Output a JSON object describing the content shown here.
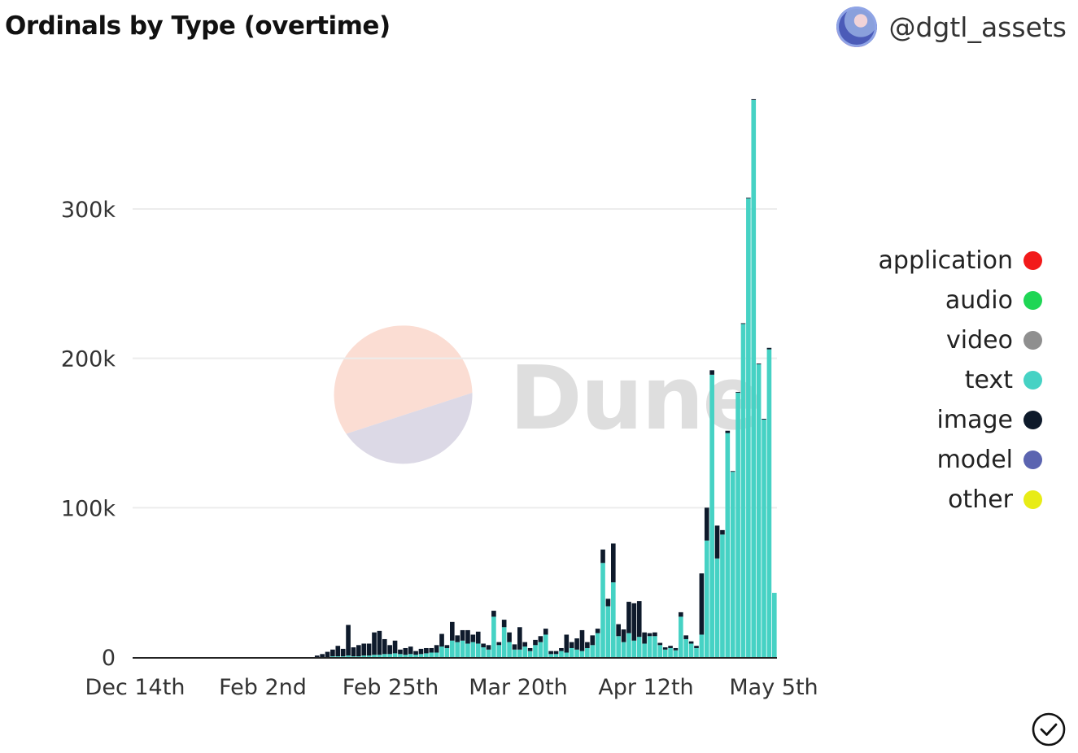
{
  "header": {
    "title": "Ordinals by Type (overtime)",
    "author": "@dgtl_assets"
  },
  "watermark": {
    "text": "Dune"
  },
  "legend": [
    {
      "label": "application",
      "color": "#f21a1a"
    },
    {
      "label": "audio",
      "color": "#1fd655"
    },
    {
      "label": "video",
      "color": "#8f8f8f"
    },
    {
      "label": "text",
      "color": "#46d2c4"
    },
    {
      "label": "image",
      "color": "#0e1a2b"
    },
    {
      "label": "model",
      "color": "#5b64b0"
    },
    {
      "label": "other",
      "color": "#e8ec16"
    }
  ],
  "icons": {
    "avatar": "user-avatar",
    "check": "check-circle-icon"
  },
  "chart_data": {
    "type": "bar",
    "stacked": true,
    "x_start": "Dec 14th",
    "x_end": "May 5th",
    "x_ticks": [
      "Dec 14th",
      "Feb 2nd",
      "Feb 25th",
      "Mar 20th",
      "Apr 12th",
      "May 5th"
    ],
    "y_ticks": [
      0,
      100000,
      200000,
      300000
    ],
    "y_tick_labels": [
      "0",
      "100k",
      "200k",
      "300k"
    ],
    "ylim": [
      0,
      380000
    ],
    "grid": true,
    "legend_position": "right",
    "series_order": [
      "application",
      "audio",
      "video",
      "text",
      "image",
      "model",
      "other"
    ],
    "bars": [
      {
        "text": 0,
        "image": 0
      },
      {
        "text": 0,
        "image": 0
      },
      {
        "text": 0,
        "image": 0
      },
      {
        "text": 0,
        "image": 0
      },
      {
        "text": 0,
        "image": 0
      },
      {
        "text": 0,
        "image": 0
      },
      {
        "text": 0,
        "image": 0
      },
      {
        "text": 0,
        "image": 0
      },
      {
        "text": 0,
        "image": 0
      },
      {
        "text": 0,
        "image": 0
      },
      {
        "text": 0,
        "image": 0
      },
      {
        "text": 0,
        "image": 0
      },
      {
        "text": 0,
        "image": 0
      },
      {
        "text": 0,
        "image": 0
      },
      {
        "text": 0,
        "image": 0
      },
      {
        "text": 0,
        "image": 0
      },
      {
        "text": 0,
        "image": 0
      },
      {
        "text": 0,
        "image": 0
      },
      {
        "text": 0,
        "image": 0
      },
      {
        "text": 0,
        "image": 0
      },
      {
        "text": 0,
        "image": 0
      },
      {
        "text": 0,
        "image": 0
      },
      {
        "text": 0,
        "image": 0
      },
      {
        "text": 0,
        "image": 0
      },
      {
        "text": 0,
        "image": 0
      },
      {
        "text": 0,
        "image": 0
      },
      {
        "text": 0,
        "image": 0
      },
      {
        "text": 0,
        "image": 0
      },
      {
        "text": 0,
        "image": 0
      },
      {
        "text": 0,
        "image": 0
      },
      {
        "text": 0,
        "image": 0
      },
      {
        "text": 0,
        "image": 0
      },
      {
        "text": 0,
        "image": 0
      },
      {
        "text": 0,
        "image": 0
      },
      {
        "text": 0,
        "image": 0
      },
      {
        "text": 0,
        "image": 1000
      },
      {
        "text": 0,
        "image": 2000
      },
      {
        "text": 0,
        "image": 3500
      },
      {
        "text": 500,
        "image": 4500
      },
      {
        "text": 500,
        "image": 7000
      },
      {
        "text": 500,
        "image": 5000
      },
      {
        "text": 1000,
        "image": 20500
      },
      {
        "text": 500,
        "image": 6000
      },
      {
        "text": 500,
        "image": 7500
      },
      {
        "text": 1000,
        "image": 8000
      },
      {
        "text": 1000,
        "image": 8000
      },
      {
        "text": 1500,
        "image": 15000
      },
      {
        "text": 1500,
        "image": 16000
      },
      {
        "text": 2000,
        "image": 10000
      },
      {
        "text": 2000,
        "image": 6000
      },
      {
        "text": 2500,
        "image": 8500
      },
      {
        "text": 2000,
        "image": 3000
      },
      {
        "text": 1500,
        "image": 4500
      },
      {
        "text": 2000,
        "image": 5000
      },
      {
        "text": 1500,
        "image": 2500
      },
      {
        "text": 2000,
        "image": 3500
      },
      {
        "text": 2500,
        "image": 3500
      },
      {
        "text": 3000,
        "image": 3000
      },
      {
        "text": 3000,
        "image": 5000
      },
      {
        "text": 7000,
        "image": 8500
      },
      {
        "text": 6000,
        "image": 2000
      },
      {
        "text": 11000,
        "image": 12500
      },
      {
        "text": 10000,
        "image": 4500
      },
      {
        "text": 11000,
        "image": 7000
      },
      {
        "text": 9000,
        "image": 9000
      },
      {
        "text": 10000,
        "image": 5000
      },
      {
        "text": 9000,
        "image": 8000
      },
      {
        "text": 6500,
        "image": 2500
      },
      {
        "text": 5000,
        "image": 3000
      },
      {
        "text": 27000,
        "image": 4000
      },
      {
        "text": 8000,
        "image": 2000
      },
      {
        "text": 20000,
        "image": 5000
      },
      {
        "text": 10000,
        "image": 6500
      },
      {
        "text": 5000,
        "image": 3500
      },
      {
        "text": 5000,
        "image": 15000
      },
      {
        "text": 7000,
        "image": 3000
      },
      {
        "text": 4000,
        "image": 2000
      },
      {
        "text": 8000,
        "image": 3500
      },
      {
        "text": 10000,
        "image": 4000
      },
      {
        "text": 15000,
        "image": 4000
      },
      {
        "text": 2000,
        "image": 2000
      },
      {
        "text": 2000,
        "image": 2000
      },
      {
        "text": 4000,
        "image": 2000
      },
      {
        "text": 3000,
        "image": 12000
      },
      {
        "text": 6000,
        "image": 4000
      },
      {
        "text": 5000,
        "image": 7500
      },
      {
        "text": 4000,
        "image": 14000
      },
      {
        "text": 6000,
        "image": 4000
      },
      {
        "text": 8000,
        "image": 6500
      },
      {
        "text": 16000,
        "image": 3000
      },
      {
        "text": 63000,
        "image": 9000
      },
      {
        "text": 34000,
        "image": 5000
      },
      {
        "text": 50000,
        "image": 26000
      },
      {
        "text": 14000,
        "image": 8000
      },
      {
        "text": 10000,
        "image": 8500
      },
      {
        "text": 16000,
        "image": 21000
      },
      {
        "text": 11000,
        "image": 25000
      },
      {
        "text": 13500,
        "image": 24000
      },
      {
        "text": 9000,
        "image": 7500
      },
      {
        "text": 14000,
        "image": 2000
      },
      {
        "text": 14000,
        "image": 2500
      },
      {
        "text": 8000,
        "image": 1500
      },
      {
        "text": 5000,
        "image": 1500
      },
      {
        "text": 6000,
        "image": 1500
      },
      {
        "text": 4500,
        "image": 1500
      },
      {
        "text": 27000,
        "image": 3000
      },
      {
        "text": 12000,
        "image": 2500
      },
      {
        "text": 9000,
        "image": 1500
      },
      {
        "text": 6000,
        "image": 1500
      },
      {
        "text": 15000,
        "image": 41000
      },
      {
        "text": 78000,
        "image": 22000
      },
      {
        "text": 189000,
        "image": 3000
      },
      {
        "text": 66000,
        "image": 22000
      },
      {
        "text": 82000,
        "image": 3000
      },
      {
        "text": 150000,
        "image": 1500
      },
      {
        "text": 124000,
        "image": 500
      },
      {
        "text": 177000,
        "image": 500
      },
      {
        "text": 223000,
        "image": 500
      },
      {
        "text": 307000,
        "image": 500
      },
      {
        "text": 373000,
        "image": 500
      },
      {
        "text": 196000,
        "image": 500
      },
      {
        "text": 159000,
        "image": 500
      },
      {
        "text": 206000,
        "image": 1000
      },
      {
        "text": 43000,
        "image": 0
      }
    ]
  }
}
